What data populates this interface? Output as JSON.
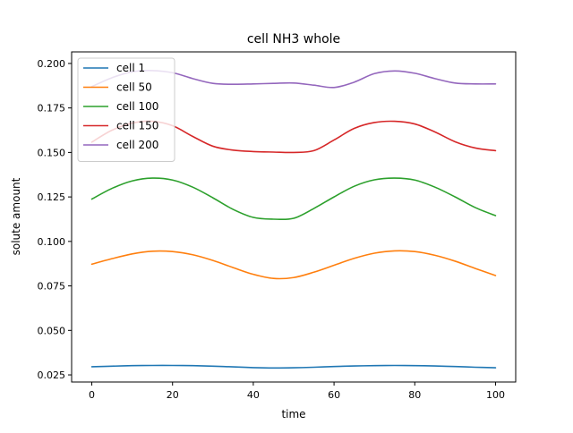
{
  "chart_data": {
    "type": "line",
    "title": "cell NH3 whole",
    "xlabel": "time",
    "ylabel": "solute amount",
    "xlim": [
      -5,
      105
    ],
    "ylim": [
      0.021,
      0.2065
    ],
    "xticks": [
      0,
      20,
      40,
      60,
      80,
      100
    ],
    "xtick_labels": [
      "0",
      "20",
      "40",
      "60",
      "80",
      "100"
    ],
    "yticks": [
      0.025,
      0.05,
      0.075,
      0.1,
      0.125,
      0.15,
      0.175,
      0.2
    ],
    "ytick_labels": [
      "0.025",
      "0.050",
      "0.075",
      "0.100",
      "0.125",
      "0.150",
      "0.175",
      "0.200"
    ],
    "grid": false,
    "legend_position": "top-left",
    "x": [
      0,
      5,
      10,
      15,
      20,
      25,
      30,
      35,
      40,
      45,
      50,
      55,
      60,
      65,
      70,
      75,
      80,
      85,
      90,
      95,
      100
    ],
    "series": [
      {
        "name": "cell 1",
        "color": "#1f77b4",
        "values": [
          0.0296,
          0.0299,
          0.0302,
          0.0303,
          0.0303,
          0.0302,
          0.0299,
          0.0295,
          0.0291,
          0.0289,
          0.029,
          0.0293,
          0.0297,
          0.03,
          0.0302,
          0.0303,
          0.0302,
          0.03,
          0.0297,
          0.0293,
          0.029
        ]
      },
      {
        "name": "cell 50",
        "color": "#ff7f0e",
        "values": [
          0.0872,
          0.0903,
          0.093,
          0.0945,
          0.0943,
          0.0925,
          0.0893,
          0.0853,
          0.0815,
          0.0792,
          0.0797,
          0.0827,
          0.0866,
          0.0905,
          0.0934,
          0.0947,
          0.0943,
          0.0922,
          0.0889,
          0.0848,
          0.0808
        ]
      },
      {
        "name": "cell 100",
        "color": "#2ca02c",
        "values": [
          0.1238,
          0.1298,
          0.134,
          0.1356,
          0.1345,
          0.1305,
          0.1245,
          0.118,
          0.1135,
          0.1125,
          0.113,
          0.1185,
          0.125,
          0.131,
          0.1346,
          0.1356,
          0.1345,
          0.1305,
          0.125,
          0.119,
          0.1145
        ]
      },
      {
        "name": "cell 150",
        "color": "#d62728",
        "values": [
          0.1558,
          0.1625,
          0.1665,
          0.1675,
          0.165,
          0.159,
          0.1535,
          0.1513,
          0.1505,
          0.1502,
          0.15,
          0.151,
          0.157,
          0.1635,
          0.1668,
          0.1675,
          0.166,
          0.1615,
          0.156,
          0.1525,
          0.151
        ]
      },
      {
        "name": "cell 200",
        "color": "#9467bd",
        "values": [
          0.187,
          0.192,
          0.1953,
          0.196,
          0.1948,
          0.1915,
          0.1888,
          0.1883,
          0.1885,
          0.1888,
          0.189,
          0.1878,
          0.1865,
          0.1895,
          0.1943,
          0.1958,
          0.1945,
          0.1915,
          0.189,
          0.1885,
          0.1885
        ]
      }
    ]
  }
}
